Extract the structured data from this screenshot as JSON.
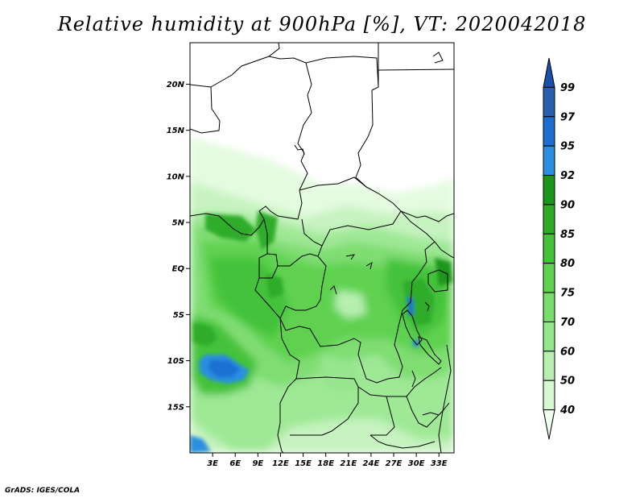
{
  "title": "Relative humidity at 900hPa [%], VT: 2020042018",
  "credit": "GrADS: IGES/COLA",
  "map": {
    "lon_range": [
      0,
      35
    ],
    "lat_range": [
      -20,
      24.5
    ],
    "lat_ticks": [
      {
        "value": 20,
        "label": "20N"
      },
      {
        "value": 15,
        "label": "15N"
      },
      {
        "value": 10,
        "label": "10N"
      },
      {
        "value": 5,
        "label": "5N"
      },
      {
        "value": 0,
        "label": "EQ"
      },
      {
        "value": -5,
        "label": "5S"
      },
      {
        "value": -10,
        "label": "10S"
      },
      {
        "value": -15,
        "label": "15S"
      }
    ],
    "lon_ticks": [
      {
        "value": 3,
        "label": "3E"
      },
      {
        "value": 6,
        "label": "6E"
      },
      {
        "value": 9,
        "label": "9E"
      },
      {
        "value": 12,
        "label": "12E"
      },
      {
        "value": 15,
        "label": "15E"
      },
      {
        "value": 18,
        "label": "18E"
      },
      {
        "value": 21,
        "label": "21E"
      },
      {
        "value": 24,
        "label": "24E"
      },
      {
        "value": 27,
        "label": "27E"
      },
      {
        "value": 30,
        "label": "30E"
      },
      {
        "value": 33,
        "label": "33E"
      }
    ]
  },
  "colorbar": {
    "levels": [
      "40",
      "50",
      "60",
      "70",
      "75",
      "80",
      "85",
      "90",
      "92",
      "95",
      "97",
      "99"
    ],
    "colors": [
      "#f0fff0",
      "#d7f9d2",
      "#b8efb1",
      "#96e68d",
      "#79dc6c",
      "#5fd150",
      "#44c23a",
      "#2eac29",
      "#1b961c",
      "#2a8fe0",
      "#1c6fd1",
      "#2a5fb0",
      "#1c4faa"
    ]
  },
  "chart_data": {
    "type": "heatmap",
    "title": "Relative humidity at 900hPa [%], VT: 2020042018",
    "variable": "Relative humidity at 900hPa",
    "units": "%",
    "valid_time": "2020042018",
    "contour_levels": [
      40,
      50,
      60,
      70,
      75,
      80,
      85,
      90,
      92,
      95,
      97,
      99
    ],
    "x_axis": {
      "ticks": [
        "3E",
        "6E",
        "9E",
        "12E",
        "15E",
        "18E",
        "21E",
        "24E",
        "27E",
        "30E",
        "33E"
      ]
    },
    "y_axis": {
      "ticks": [
        "20N",
        "15N",
        "10N",
        "5N",
        "EQ",
        "5S",
        "10S",
        "15S"
      ]
    }
  }
}
